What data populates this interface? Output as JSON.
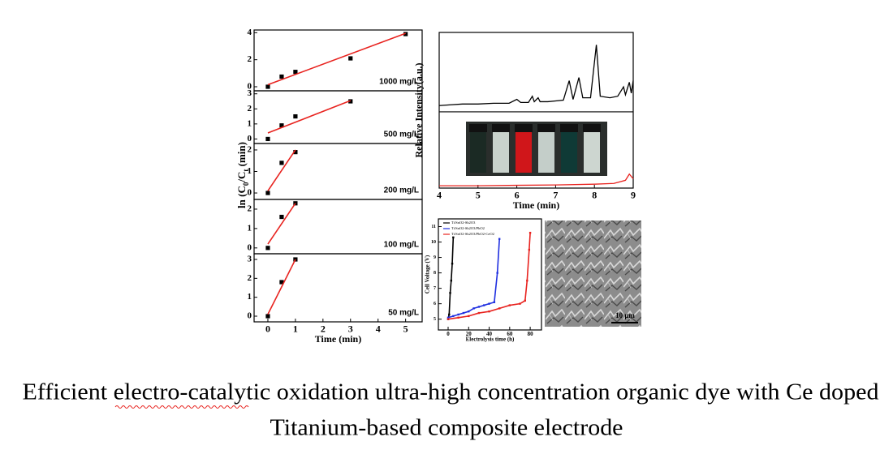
{
  "chart_data": [
    {
      "type": "scatter",
      "panel_label": "1000 mg/L",
      "xlim": [
        -0.5,
        5.6
      ],
      "ylim": [
        -0.3,
        4.2
      ],
      "yticks": [
        0,
        2,
        4
      ],
      "y_label": [
        "ln (C",
        "0",
        "/C",
        "t",
        " (min)"
      ],
      "series": [
        {
          "color": "#000000",
          "mode": "markers",
          "x": [
            0,
            0.5,
            1,
            3,
            5
          ],
          "values": [
            0,
            0.75,
            1.1,
            2.1,
            3.9
          ]
        },
        {
          "color": "#e8231f",
          "mode": "lines",
          "x": [
            0,
            5
          ],
          "values": [
            0.15,
            3.95
          ]
        }
      ]
    },
    {
      "type": "scatter",
      "panel_label": "500 mg/L",
      "xlim": [
        -0.5,
        5.6
      ],
      "ylim": [
        -0.3,
        3.2
      ],
      "yticks": [
        0,
        1,
        2,
        3
      ],
      "series": [
        {
          "color": "#000000",
          "mode": "markers",
          "x": [
            0,
            0.5,
            1,
            3
          ],
          "values": [
            0,
            0.9,
            1.5,
            2.5
          ]
        },
        {
          "color": "#e8231f",
          "mode": "lines",
          "x": [
            0,
            3
          ],
          "values": [
            0.4,
            2.55
          ]
        }
      ]
    },
    {
      "type": "scatter",
      "panel_label": "200 mg/L",
      "xlim": [
        -0.5,
        5.6
      ],
      "ylim": [
        -0.3,
        2.3
      ],
      "yticks": [
        0,
        1,
        2
      ],
      "series": [
        {
          "color": "#000000",
          "mode": "markers",
          "x": [
            0,
            0.5,
            1
          ],
          "values": [
            0,
            1.4,
            1.9
          ]
        },
        {
          "color": "#e8231f",
          "mode": "lines",
          "x": [
            0,
            1
          ],
          "values": [
            0.1,
            2.0
          ]
        }
      ]
    },
    {
      "type": "scatter",
      "panel_label": "100 mg/L",
      "xlim": [
        -0.5,
        5.6
      ],
      "ylim": [
        -0.3,
        2.5
      ],
      "yticks": [
        0,
        1,
        2
      ],
      "series": [
        {
          "color": "#000000",
          "mode": "markers",
          "x": [
            0,
            0.5,
            1
          ],
          "values": [
            0,
            1.6,
            2.3
          ]
        },
        {
          "color": "#e8231f",
          "mode": "lines",
          "x": [
            0,
            1
          ],
          "values": [
            0.2,
            2.3
          ]
        }
      ]
    },
    {
      "type": "scatter",
      "panel_label": "50 mg/L",
      "xlim": [
        -0.5,
        5.6
      ],
      "ylim": [
        -0.3,
        3.3
      ],
      "yticks": [
        0,
        1,
        2,
        3
      ],
      "xticks": [
        0,
        1,
        2,
        3,
        4,
        5
      ],
      "x_label": "Time (min)",
      "series": [
        {
          "color": "#000000",
          "mode": "markers",
          "x": [
            0,
            0.5,
            1
          ],
          "values": [
            0,
            1.8,
            3.0
          ]
        },
        {
          "color": "#e8231f",
          "mode": "lines",
          "x": [
            0,
            1
          ],
          "values": [
            0.1,
            3.0
          ]
        }
      ]
    },
    {
      "type": "line",
      "xlim": [
        4,
        9
      ],
      "ylim": [
        0,
        10
      ],
      "xticks": [
        4,
        5,
        6,
        7,
        8,
        9
      ],
      "x_label": "Time (min)",
      "y_label": "Relative Intensity(a.u.)",
      "series": [
        {
          "color": "#000000",
          "mode": "lines",
          "x": [
            4.0,
            4.3,
            4.6,
            5.0,
            5.4,
            5.8,
            6.0,
            6.1,
            6.3,
            6.4,
            6.45,
            6.55,
            6.6,
            6.8,
            7.0,
            7.2,
            7.35,
            7.45,
            7.6,
            7.7,
            7.9,
            8.05,
            8.15,
            8.4,
            8.6,
            8.75,
            8.8,
            8.9,
            8.95,
            9.0
          ],
          "values": [
            5.3,
            5.35,
            5.4,
            5.4,
            5.45,
            5.45,
            5.7,
            5.5,
            5.5,
            5.9,
            5.55,
            5.8,
            5.55,
            5.55,
            5.6,
            5.65,
            6.9,
            5.7,
            7.1,
            5.8,
            5.8,
            9.2,
            5.9,
            5.8,
            5.9,
            6.5,
            6.0,
            6.8,
            6.1,
            6.9
          ]
        },
        {
          "color": "#e8231f",
          "mode": "lines",
          "x": [
            4.0,
            5.0,
            6.0,
            7.0,
            8.0,
            8.5,
            8.8,
            8.9,
            9.0
          ],
          "values": [
            0.15,
            0.15,
            0.18,
            0.2,
            0.25,
            0.3,
            0.5,
            0.9,
            0.6
          ]
        }
      ]
    },
    {
      "type": "scatter",
      "xlim": [
        -9.5,
        91
      ],
      "ylim": [
        4.3,
        11.5
      ],
      "xticks": [
        0,
        20,
        40,
        60,
        80
      ],
      "yticks": [
        5,
        6,
        7,
        8,
        9,
        10,
        11
      ],
      "x_label": "Electrolysis time (h)",
      "y_label": "Cell Voltage (V)",
      "legend": "top-left",
      "series": [
        {
          "name": "Ti/SnO2-Sb2O3",
          "color": "#000000",
          "mode": "lines+markers",
          "x": [
            0,
            1,
            2,
            3,
            4,
            5
          ],
          "values": [
            5.0,
            5.3,
            6.7,
            7.5,
            8.6,
            10.3
          ]
        },
        {
          "name": "Ti/SnO2-Sb2O3/PbO2",
          "color": "#1f2fe0",
          "mode": "lines+markers",
          "x": [
            0,
            5,
            10,
            15,
            20,
            25,
            30,
            35,
            40,
            45,
            48,
            50
          ],
          "values": [
            5.1,
            5.2,
            5.3,
            5.4,
            5.5,
            5.7,
            5.8,
            5.9,
            6.0,
            6.1,
            8.0,
            10.2
          ]
        },
        {
          "name": "Ti/SnO2-Sb2O3/PbO2-CeO2",
          "color": "#e8231f",
          "mode": "lines+markers",
          "x": [
            0,
            10,
            20,
            30,
            40,
            50,
            60,
            70,
            75,
            77,
            79,
            80
          ],
          "values": [
            5.0,
            5.1,
            5.2,
            5.4,
            5.5,
            5.7,
            5.9,
            6.0,
            6.2,
            7.5,
            9.5,
            10.6
          ]
        }
      ]
    }
  ],
  "sem_image": {
    "scale_label": "10 μm"
  },
  "caption": [
    "Efficient electro-catalytic oxidation ultra-high concentration organic dye with Ce doped",
    "Titanium-based composite electrode"
  ]
}
